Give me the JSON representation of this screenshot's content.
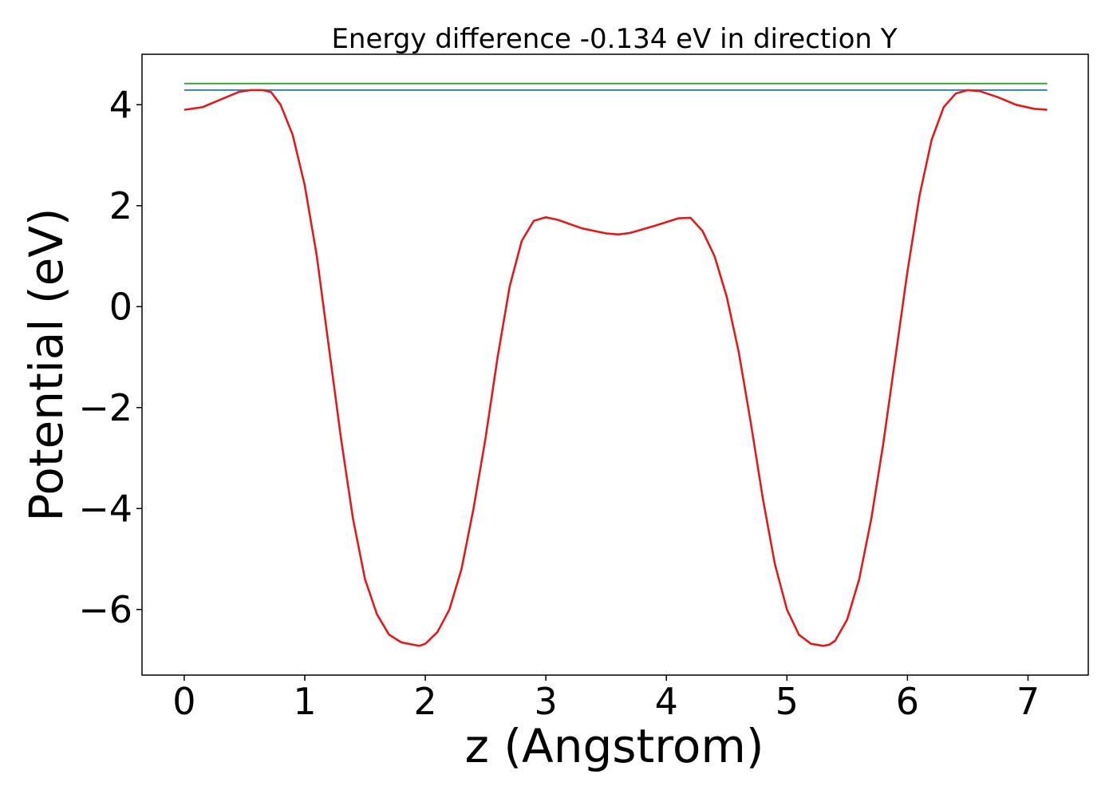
{
  "chart_data": {
    "type": "line",
    "title": "Energy difference -0.134 eV in direction Y",
    "xlabel": "z (Angstrom)",
    "ylabel": "Potential (eV)",
    "xlim": [
      -0.35,
      7.5
    ],
    "ylim": [
      -7.3,
      5.0
    ],
    "xticks": [
      0,
      1,
      2,
      3,
      4,
      5,
      6,
      7
    ],
    "xtick_labels": [
      "0",
      "1",
      "2",
      "3",
      "4",
      "5",
      "6",
      "7"
    ],
    "yticks": [
      -6,
      -4,
      -2,
      0,
      2,
      4
    ],
    "ytick_labels": [
      "−6",
      "−4",
      "−2",
      "0",
      "2",
      "4"
    ],
    "grid": false,
    "series": [
      {
        "color": "#2ca02c",
        "x": [
          0,
          7.16
        ],
        "y": [
          4.42,
          4.42
        ]
      },
      {
        "color": "#1f77b4",
        "x": [
          0,
          7.16
        ],
        "y": [
          4.29,
          4.29
        ]
      },
      {
        "color": "#e31a1c",
        "x": [
          0.0,
          0.15,
          0.3,
          0.45,
          0.55,
          0.65,
          0.72,
          0.8,
          0.9,
          1.0,
          1.1,
          1.2,
          1.3,
          1.4,
          1.5,
          1.6,
          1.7,
          1.8,
          1.9,
          1.95,
          2.0,
          2.1,
          2.2,
          2.3,
          2.4,
          2.5,
          2.6,
          2.7,
          2.8,
          2.9,
          3.0,
          3.1,
          3.3,
          3.5,
          3.6,
          3.7,
          3.9,
          4.1,
          4.2,
          4.3,
          4.4,
          4.5,
          4.6,
          4.7,
          4.8,
          4.9,
          5.0,
          5.1,
          5.2,
          5.3,
          5.35,
          5.4,
          5.5,
          5.6,
          5.7,
          5.8,
          5.9,
          6.0,
          6.1,
          6.2,
          6.3,
          6.4,
          6.5,
          6.6,
          6.75,
          6.9,
          7.05,
          7.16
        ],
        "y": [
          3.9,
          3.95,
          4.1,
          4.25,
          4.29,
          4.29,
          4.25,
          4.0,
          3.4,
          2.4,
          1.0,
          -0.8,
          -2.6,
          -4.2,
          -5.4,
          -6.1,
          -6.5,
          -6.65,
          -6.7,
          -6.72,
          -6.68,
          -6.45,
          -6.0,
          -5.2,
          -4.0,
          -2.6,
          -1.0,
          0.4,
          1.3,
          1.7,
          1.77,
          1.72,
          1.55,
          1.45,
          1.43,
          1.46,
          1.6,
          1.75,
          1.76,
          1.5,
          1.0,
          0.2,
          -0.9,
          -2.3,
          -3.8,
          -5.1,
          -6.0,
          -6.5,
          -6.68,
          -6.72,
          -6.7,
          -6.62,
          -6.2,
          -5.4,
          -4.2,
          -2.7,
          -1.0,
          0.7,
          2.2,
          3.3,
          3.95,
          4.22,
          4.29,
          4.27,
          4.15,
          4.0,
          3.92,
          3.9
        ]
      }
    ]
  }
}
